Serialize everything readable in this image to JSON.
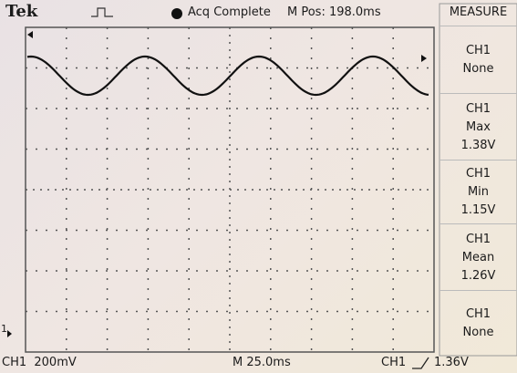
{
  "header": {
    "brand": "Tek",
    "status": "Acq Complete",
    "position": "M Pos: 198.0ms"
  },
  "menu": {
    "title": "MEASURE",
    "items": [
      {
        "source": "CH1",
        "label": "None"
      },
      {
        "source": "CH1",
        "label": "Max",
        "value": "1.38V"
      },
      {
        "source": "CH1",
        "label": "Min",
        "value": "1.15V"
      },
      {
        "source": "CH1",
        "label": "Mean",
        "value": "1.26V"
      },
      {
        "source": "CH1",
        "label": "None"
      }
    ]
  },
  "markers": {
    "channel": "1"
  },
  "footer": {
    "channel_scale": "CH1  200mV",
    "timebase": "M 25.0ms",
    "trigger_source": "CH1",
    "trigger_level": "1.36V"
  }
}
